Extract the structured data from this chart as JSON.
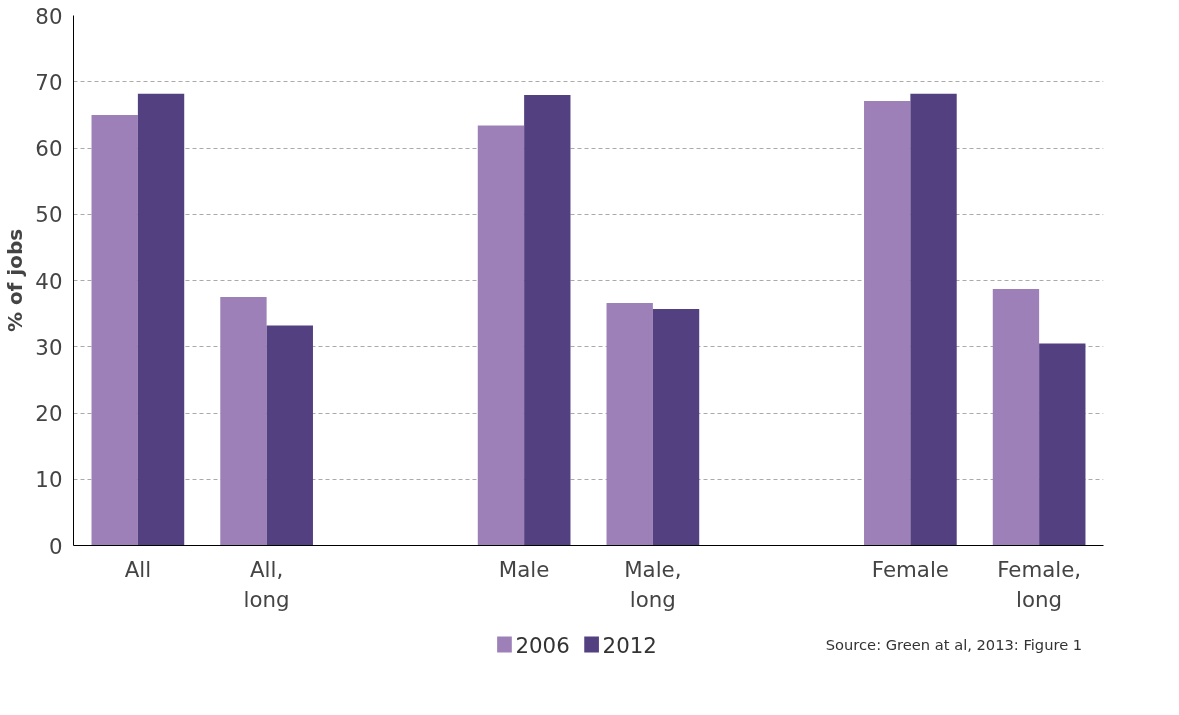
{
  "chart_data": {
    "type": "bar",
    "ylabel": "% of jobs",
    "categories": [
      "All",
      "All, long",
      null,
      "Male",
      "Male, long",
      null,
      "Female",
      "Female, long"
    ],
    "series": [
      {
        "name": "2006",
        "color": "#9e80b8",
        "values": [
          65,
          37.5,
          null,
          63.4,
          36.6,
          null,
          67.1,
          38.7
        ]
      },
      {
        "name": "2012",
        "color": "#534081",
        "values": [
          68.2,
          33.2,
          null,
          68,
          35.7,
          null,
          68.2,
          30.5
        ]
      }
    ],
    "ylim": [
      0,
      80
    ],
    "yticks": [
      0,
      10,
      20,
      30,
      40,
      50,
      60,
      70,
      80
    ],
    "grid": "y",
    "legend": "bottom",
    "annotations": [
      "Source: Green at al, 2013: Figure 1"
    ]
  }
}
